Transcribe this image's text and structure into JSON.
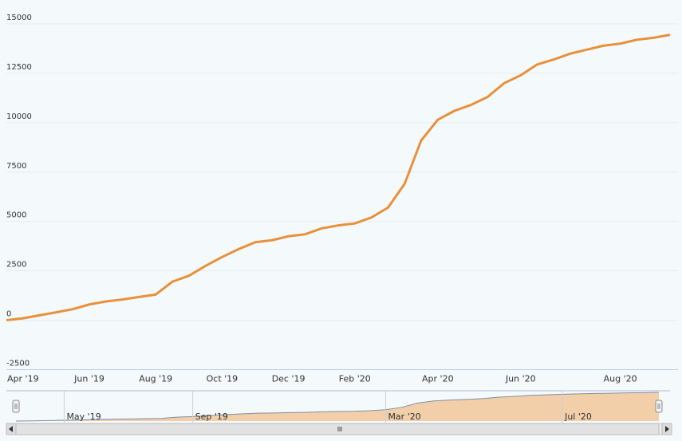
{
  "chart_data": {
    "type": "line",
    "categories": [
      null,
      "Apr '19",
      null,
      null,
      null,
      "Jun '19",
      null,
      null,
      null,
      "Aug '19",
      null,
      null,
      null,
      "Oct '19",
      null,
      null,
      null,
      "Dec '19",
      null,
      null,
      null,
      "Feb '20",
      null,
      null,
      null,
      null,
      "Apr '20",
      null,
      null,
      null,
      null,
      "Jun '20",
      null,
      null,
      null,
      null,
      null,
      "Aug '20",
      null,
      null,
      null
    ],
    "values": [
      0,
      100,
      250,
      400,
      560,
      800,
      950,
      1050,
      1180,
      1300,
      1950,
      2250,
      2750,
      3200,
      3600,
      3950,
      4050,
      4250,
      4350,
      4650,
      4800,
      4900,
      5200,
      5700,
      6900,
      9100,
      10150,
      10600,
      10900,
      11300,
      12000,
      12400,
      12950,
      13200,
      13500,
      13700,
      13900,
      14000,
      14200,
      14300,
      14450
    ],
    "color": "#e8913a",
    "ylim": [
      -2500,
      15000
    ],
    "yticks": [
      -2500,
      0,
      2500,
      5000,
      7500,
      10000,
      12500,
      15000
    ],
    "grid": true,
    "navigator": {
      "labels": [
        null,
        null,
        null,
        "May '19",
        null,
        null,
        null,
        null,
        null,
        null,
        null,
        "Sep '19",
        null,
        null,
        null,
        null,
        null,
        null,
        null,
        null,
        null,
        null,
        null,
        "Mar '20",
        null,
        null,
        null,
        null,
        null,
        null,
        null,
        null,
        null,
        null,
        "Jul '20",
        null,
        null,
        null,
        null,
        null,
        null
      ],
      "line_color": "#7d8fa6",
      "fill_color": "#f2cfa9"
    }
  }
}
